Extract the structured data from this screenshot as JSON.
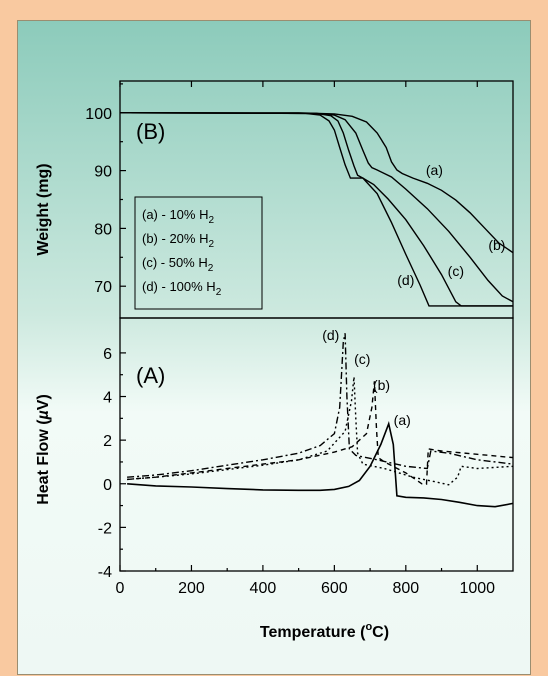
{
  "colors": {
    "page_background": "#f9c9a0",
    "panel_border": "#9a8d70",
    "line": "#000000"
  },
  "chart_data": [
    {
      "panel": "B",
      "type": "line",
      "panel_label": "(B)",
      "ylabel": "Weight (mg)",
      "xlim": [
        0,
        1100
      ],
      "ylim": [
        64.5,
        105.5
      ],
      "yticks": [
        70,
        80,
        90,
        100
      ],
      "grid": false,
      "legend": {
        "placement": "left",
        "entries": [
          {
            "text": "(a) - 10% H",
            "sub": "2"
          },
          {
            "text": "(b) - 20% H",
            "sub": "2"
          },
          {
            "text": "(c) - 50% H",
            "sub": "2"
          },
          {
            "text": "(d) - 100% H",
            "sub": "2"
          }
        ]
      },
      "series": [
        {
          "label": "(a)",
          "label_at": [
            880,
            89.2
          ],
          "dash": "solid",
          "points": [
            [
              0,
              100
            ],
            [
              500,
              100
            ],
            [
              600,
              99.8
            ],
            [
              650,
              99.4
            ],
            [
              690,
              98.4
            ],
            [
              720,
              96.5
            ],
            [
              745,
              94
            ],
            [
              760,
              91.5
            ],
            [
              775,
              90.1
            ],
            [
              790,
              89.5
            ],
            [
              820,
              88.7
            ],
            [
              860,
              87.8
            ],
            [
              900,
              86.6
            ],
            [
              940,
              84.9
            ],
            [
              980,
              82.7
            ],
            [
              1020,
              80.1
            ],
            [
              1060,
              77.5
            ],
            [
              1100,
              75.8
            ]
          ]
        },
        {
          "label": "(b)",
          "label_at": [
            1055,
            76.3
          ],
          "dash": "solid",
          "points": [
            [
              0,
              100
            ],
            [
              550,
              99.9
            ],
            [
              600,
              99.6
            ],
            [
              630,
              98.8
            ],
            [
              660,
              96.5
            ],
            [
              680,
              93.5
            ],
            [
              695,
              91.3
            ],
            [
              705,
              90.5
            ],
            [
              720,
              90.1
            ],
            [
              760,
              88.9
            ],
            [
              800,
              86.8
            ],
            [
              860,
              83.4
            ],
            [
              920,
              79.5
            ],
            [
              980,
              75
            ],
            [
              1030,
              71
            ],
            [
              1070,
              68.3
            ],
            [
              1100,
              67.3
            ]
          ]
        },
        {
          "label": "(c)",
          "label_at": [
            940,
            71.8
          ],
          "dash": "solid",
          "points": [
            [
              0,
              100
            ],
            [
              550,
              99.9
            ],
            [
              590,
              99.5
            ],
            [
              610,
              98.6
            ],
            [
              625,
              96.5
            ],
            [
              640,
              93.5
            ],
            [
              655,
              90.8
            ],
            [
              665,
              89.2
            ],
            [
              680,
              88.7
            ],
            [
              710,
              87.6
            ],
            [
              750,
              85.1
            ],
            [
              800,
              81.5
            ],
            [
              850,
              77
            ],
            [
              900,
              72
            ],
            [
              940,
              67.3
            ],
            [
              955,
              66.6
            ],
            [
              1100,
              66.6
            ]
          ]
        },
        {
          "label": "(d)",
          "label_at": [
            800,
            70.2
          ],
          "dash": "solid",
          "points": [
            [
              0,
              100
            ],
            [
              520,
              99.9
            ],
            [
              560,
              99.6
            ],
            [
              585,
              98.6
            ],
            [
              600,
              97
            ],
            [
              615,
              94
            ],
            [
              630,
              91
            ],
            [
              645,
              88.7
            ],
            [
              665,
              88.7
            ],
            [
              680,
              88.7
            ],
            [
              720,
              86
            ],
            [
              760,
              81
            ],
            [
              800,
              75.5
            ],
            [
              840,
              70.2
            ],
            [
              865,
              66.6
            ],
            [
              1100,
              66.6
            ]
          ]
        }
      ]
    },
    {
      "panel": "A",
      "type": "line",
      "panel_label": "(A)",
      "xlabel": "Temperature (",
      "xlabel_sup": "o",
      "xlabel_end": "C)",
      "ylabel": "Heat Flow (",
      "ylabel_mu": "µ",
      "ylabel_end": "V)",
      "xlim": [
        0,
        1100
      ],
      "ylim": [
        -4,
        7.6
      ],
      "xticks": [
        0,
        200,
        400,
        600,
        800,
        1000
      ],
      "yticks": [
        -4,
        -2,
        0,
        2,
        4,
        6
      ],
      "grid": false,
      "series": [
        {
          "label": "(a)",
          "label_at": [
            790,
            2.7
          ],
          "dash": "solid",
          "points": [
            [
              20,
              0
            ],
            [
              100,
              -0.1
            ],
            [
              200,
              -0.15
            ],
            [
              300,
              -0.22
            ],
            [
              400,
              -0.28
            ],
            [
              500,
              -0.3
            ],
            [
              560,
              -0.3
            ],
            [
              600,
              -0.26
            ],
            [
              640,
              -0.12
            ],
            [
              670,
              0.15
            ],
            [
              700,
              0.8
            ],
            [
              730,
              1.8
            ],
            [
              752,
              2.75
            ],
            [
              765,
              1.8
            ],
            [
              775,
              -0.55
            ],
            [
              800,
              -0.62
            ],
            [
              850,
              -0.65
            ],
            [
              900,
              -0.72
            ],
            [
              950,
              -0.85
            ],
            [
              1000,
              -1.0
            ],
            [
              1050,
              -1.05
            ],
            [
              1100,
              -0.9
            ]
          ]
        },
        {
          "label": "(b)",
          "label_at": [
            732,
            4.3
          ],
          "dash": "5,4",
          "points": [
            [
              20,
              0.2
            ],
            [
              100,
              0.3
            ],
            [
              200,
              0.5
            ],
            [
              300,
              0.7
            ],
            [
              400,
              0.9
            ],
            [
              500,
              1.1
            ],
            [
              600,
              1.45
            ],
            [
              650,
              1.7
            ],
            [
              690,
              2.3
            ],
            [
              705,
              3.5
            ],
            [
              712,
              4.7
            ],
            [
              718,
              2.5
            ],
            [
              723,
              1.2
            ],
            [
              740,
              1.0
            ],
            [
              800,
              0.5
            ],
            [
              845,
              0.0
            ],
            [
              858,
              -0.02
            ],
            [
              863,
              1.6
            ],
            [
              900,
              1.5
            ],
            [
              1000,
              1.35
            ],
            [
              1100,
              1.2
            ]
          ]
        },
        {
          "label": "(c)",
          "label_at": [
            678,
            5.5
          ],
          "dash": "2,3",
          "points": [
            [
              20,
              0.2
            ],
            [
              100,
              0.3
            ],
            [
              200,
              0.45
            ],
            [
              300,
              0.65
            ],
            [
              400,
              0.85
            ],
            [
              500,
              1.1
            ],
            [
              580,
              1.5
            ],
            [
              630,
              2.4
            ],
            [
              648,
              3.8
            ],
            [
              655,
              4.9
            ],
            [
              660,
              3.0
            ],
            [
              665,
              1.4
            ],
            [
              680,
              0.9
            ],
            [
              740,
              0.7
            ],
            [
              820,
              0.3
            ],
            [
              880,
              0.1
            ],
            [
              920,
              -0.05
            ],
            [
              945,
              0.3
            ],
            [
              955,
              0.8
            ],
            [
              1000,
              0.7
            ],
            [
              1050,
              0.75
            ],
            [
              1100,
              0.8
            ]
          ]
        },
        {
          "label": "(d)",
          "label_at": [
            590,
            6.6
          ],
          "dash": "7,3,2,3",
          "points": [
            [
              20,
              0.3
            ],
            [
              100,
              0.4
            ],
            [
              200,
              0.6
            ],
            [
              300,
              0.85
            ],
            [
              400,
              1.1
            ],
            [
              500,
              1.4
            ],
            [
              560,
              1.75
            ],
            [
              600,
              2.3
            ],
            [
              615,
              3.5
            ],
            [
              625,
              6.5
            ],
            [
              630,
              6.9
            ],
            [
              635,
              4.0
            ],
            [
              642,
              1.6
            ],
            [
              660,
              1.3
            ],
            [
              720,
              1.1
            ],
            [
              800,
              0.8
            ],
            [
              860,
              0.7
            ],
            [
              870,
              1.5
            ],
            [
              920,
              1.4
            ],
            [
              1000,
              1.1
            ],
            [
              1100,
              0.9
            ]
          ]
        }
      ]
    }
  ]
}
